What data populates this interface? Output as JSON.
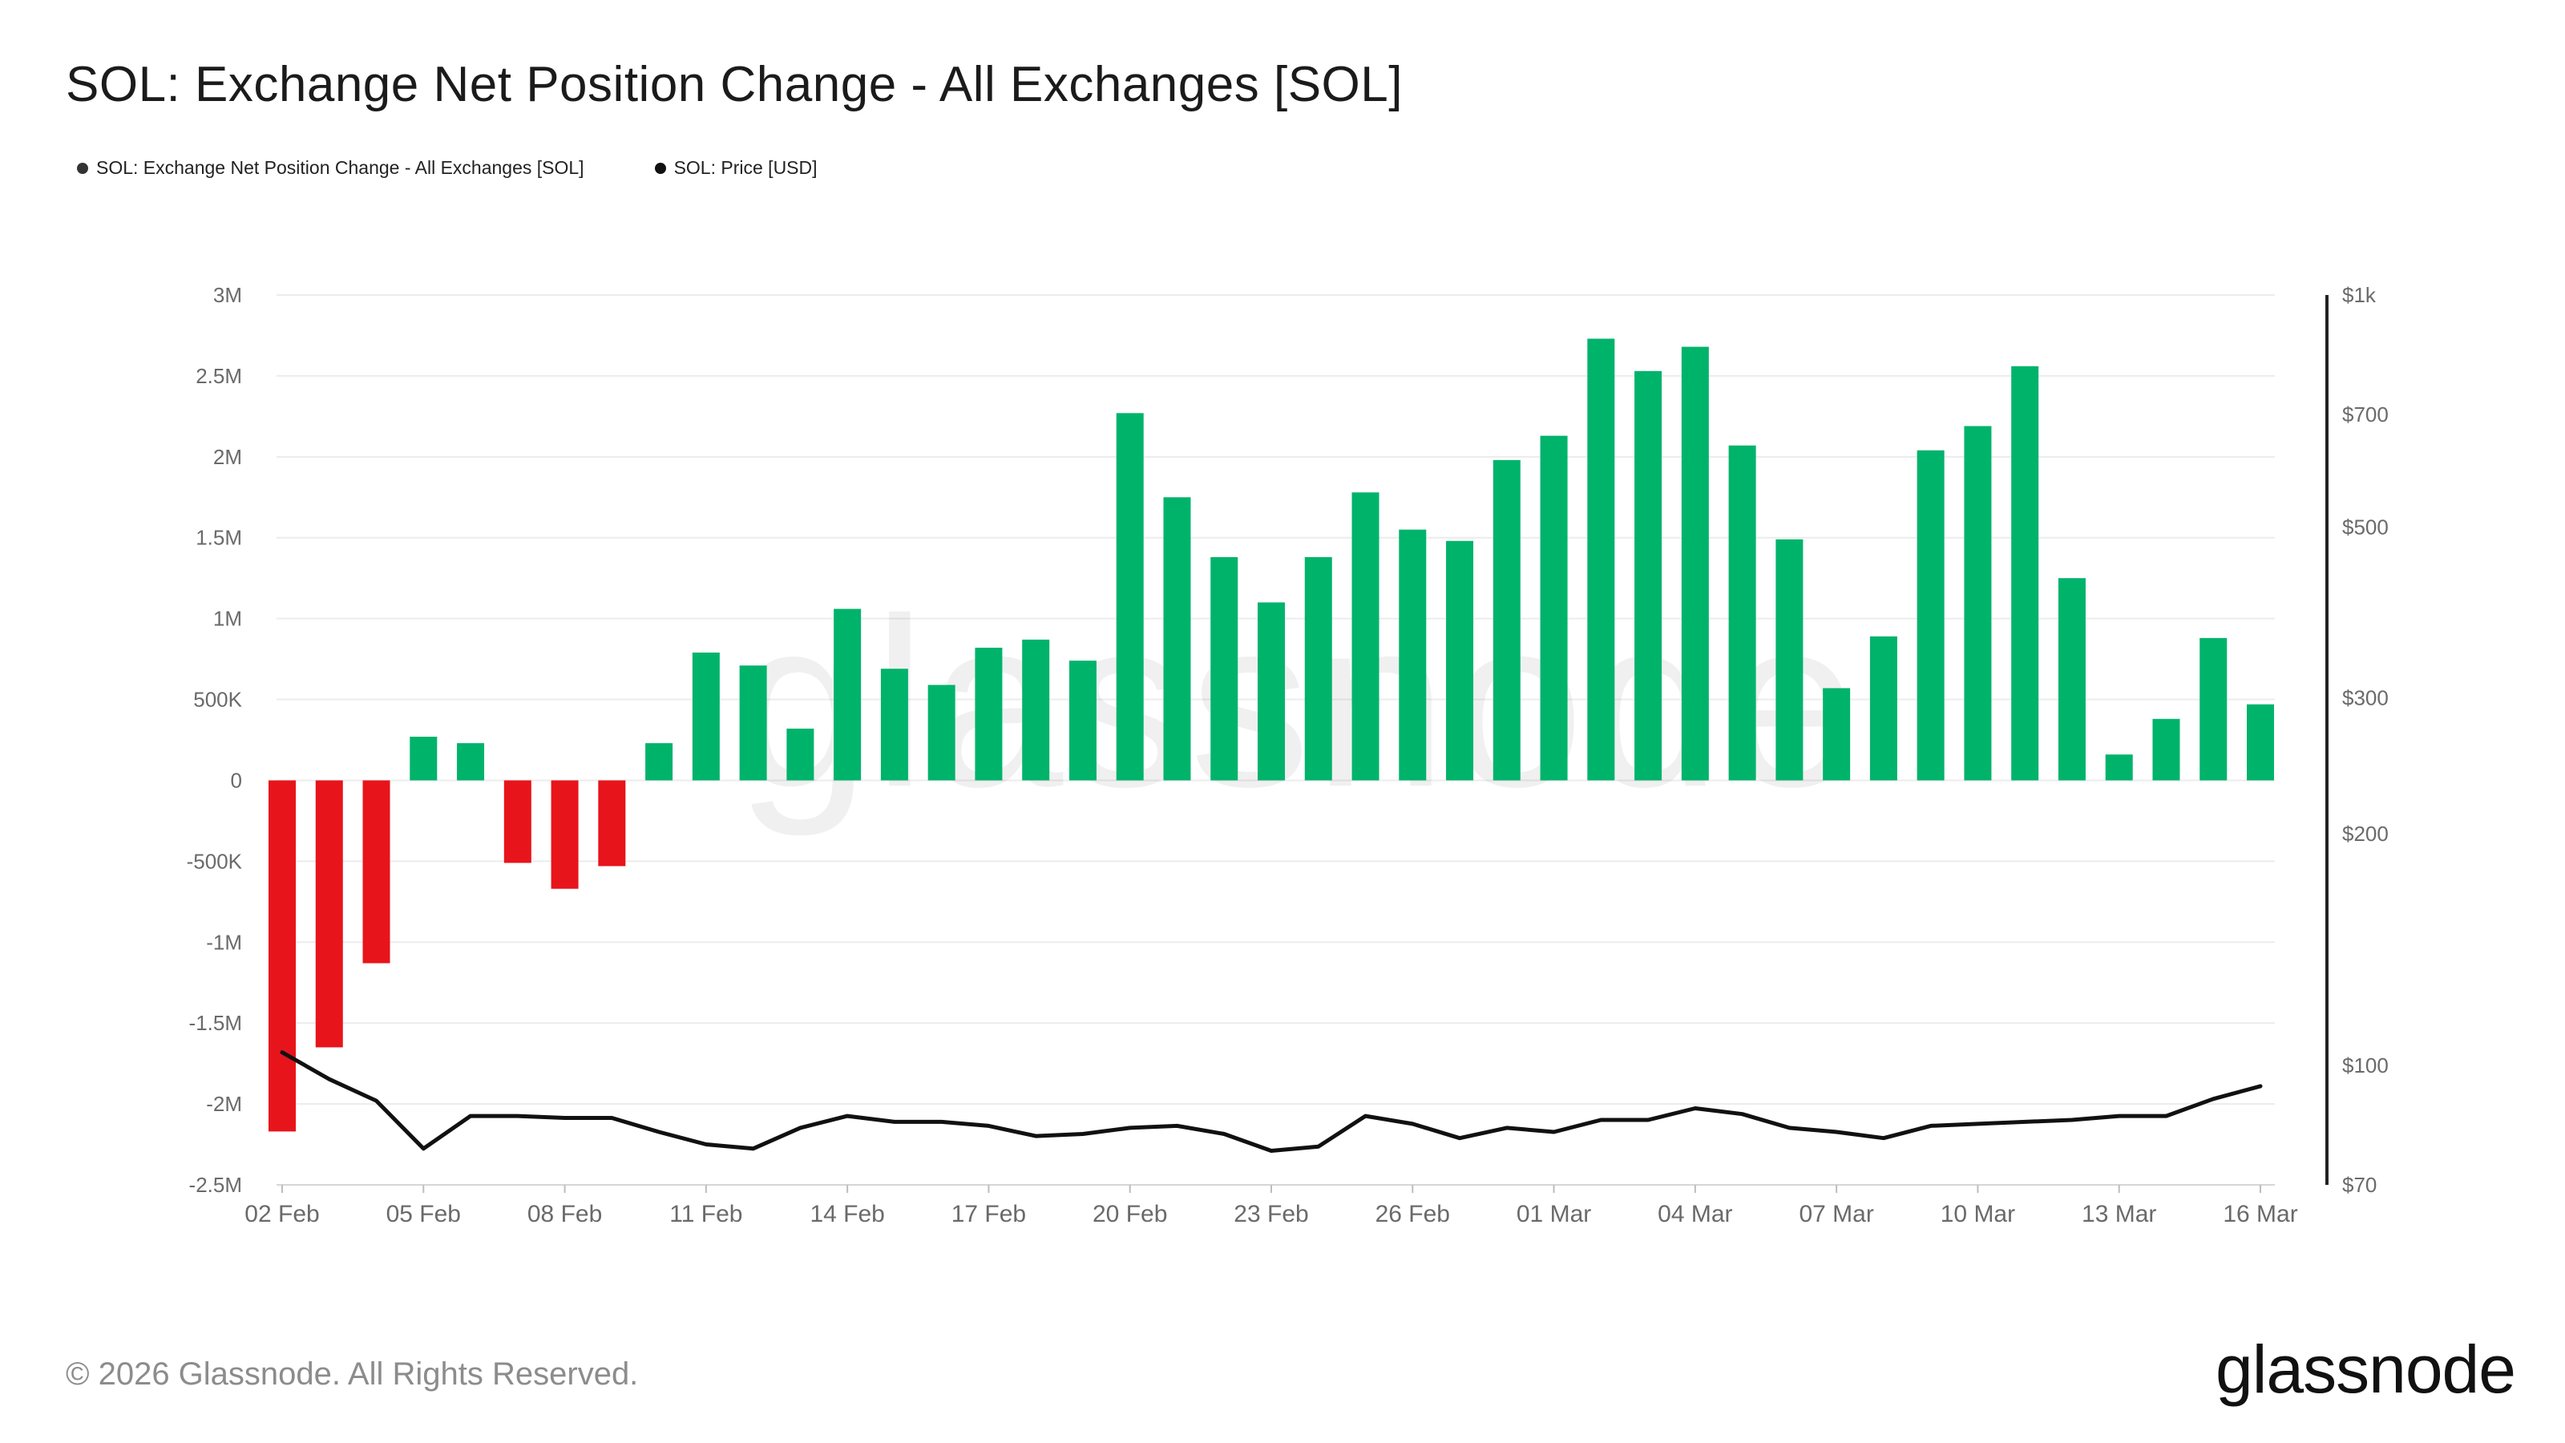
{
  "title": "SOL: Exchange Net Position Change - All Exchanges [SOL]",
  "legend": [
    {
      "label": "SOL: Exchange Net Position Change - All Exchanges [SOL]",
      "color": "#333333"
    },
    {
      "label": "SOL: Price [USD]",
      "color": "#111111"
    }
  ],
  "watermark": "glassnode",
  "footer": {
    "copyright": "© 2026 Glassnode. All Rights Reserved.",
    "brand": "glassnode"
  },
  "colors": {
    "positive": "#00b36b",
    "negative": "#e8141b",
    "price_line": "#111111",
    "grid": "#ececec"
  },
  "chart_data": {
    "type": "bar",
    "title": "SOL: Exchange Net Position Change - All Exchanges [SOL]",
    "left_axis": {
      "ylim": [
        -2500000,
        3000000
      ],
      "ticks": [
        {
          "value": 3000000,
          "label": "3M"
        },
        {
          "value": 2500000,
          "label": "2.5M"
        },
        {
          "value": 2000000,
          "label": "2M"
        },
        {
          "value": 1500000,
          "label": "1.5M"
        },
        {
          "value": 1000000,
          "label": "1M"
        },
        {
          "value": 500000,
          "label": "500K"
        },
        {
          "value": 0,
          "label": "0"
        },
        {
          "value": -500000,
          "label": "-500K"
        },
        {
          "value": -1000000,
          "label": "-1M"
        },
        {
          "value": -1500000,
          "label": "-1.5M"
        },
        {
          "value": -2000000,
          "label": "-2M"
        },
        {
          "value": -2500000,
          "label": "-2.5M"
        }
      ]
    },
    "right_axis": {
      "scale": "log",
      "ylim": [
        70,
        1000
      ],
      "ticks": [
        {
          "value": 1000,
          "label": "$1k"
        },
        {
          "value": 700,
          "label": "$700"
        },
        {
          "value": 500,
          "label": "$500"
        },
        {
          "value": 300,
          "label": "$300"
        },
        {
          "value": 200,
          "label": "$200"
        },
        {
          "value": 100,
          "label": "$100"
        },
        {
          "value": 70,
          "label": "$70"
        }
      ]
    },
    "x_labels": [
      {
        "index": 0,
        "label": "02 Feb"
      },
      {
        "index": 3,
        "label": "05 Feb"
      },
      {
        "index": 6,
        "label": "08 Feb"
      },
      {
        "index": 9,
        "label": "11 Feb"
      },
      {
        "index": 12,
        "label": "14 Feb"
      },
      {
        "index": 15,
        "label": "17 Feb"
      },
      {
        "index": 18,
        "label": "20 Feb"
      },
      {
        "index": 21,
        "label": "23 Feb"
      },
      {
        "index": 24,
        "label": "26 Feb"
      },
      {
        "index": 27,
        "label": "01 Mar"
      },
      {
        "index": 30,
        "label": "04 Mar"
      },
      {
        "index": 33,
        "label": "07 Mar"
      },
      {
        "index": 36,
        "label": "10 Mar"
      },
      {
        "index": 39,
        "label": "13 Mar"
      },
      {
        "index": 42,
        "label": "16 Mar"
      }
    ],
    "series": [
      {
        "name": "SOL: Exchange Net Position Change - All Exchanges [SOL]",
        "kind": "bar",
        "values": [
          -2170000,
          -1650000,
          -1130000,
          270000,
          230000,
          -510000,
          -670000,
          -530000,
          230000,
          790000,
          710000,
          320000,
          1060000,
          690000,
          590000,
          820000,
          870000,
          740000,
          2270000,
          1750000,
          1380000,
          1100000,
          1380000,
          1780000,
          1550000,
          1480000,
          1980000,
          2130000,
          2730000,
          2530000,
          2680000,
          2070000,
          1490000,
          570000,
          890000,
          2040000,
          2190000,
          2560000,
          1250000,
          160000,
          380000,
          880000,
          470000
        ]
      },
      {
        "name": "SOL: Price [USD]",
        "kind": "line",
        "values": [
          104,
          96,
          90,
          78,
          86,
          86,
          85.5,
          85.5,
          82,
          79,
          78,
          83,
          86,
          84.5,
          84.5,
          83.5,
          81,
          81.5,
          83,
          83.5,
          81.5,
          77.5,
          78.5,
          86,
          84,
          80.5,
          83,
          82,
          85,
          85,
          88,
          86.5,
          83,
          82,
          80.5,
          83.5,
          84,
          84.5,
          85,
          86,
          86,
          90.5,
          94
        ]
      }
    ]
  }
}
